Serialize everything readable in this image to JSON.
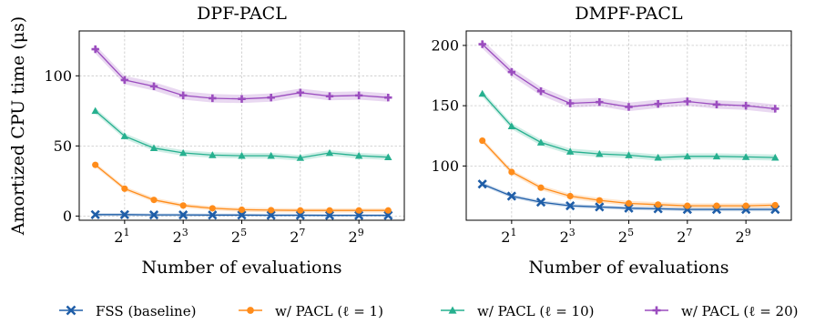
{
  "chart_data": [
    {
      "type": "line",
      "title": "DPF-PACL",
      "xlabel": "Number of evaluations",
      "ylabel": "Amortized CPU time (μs)",
      "x_scale": "log2",
      "x": [
        1,
        2,
        4,
        8,
        16,
        32,
        64,
        128,
        256,
        512,
        1024
      ],
      "xticks": [
        2,
        8,
        32,
        128,
        512
      ],
      "xtick_labels": [
        [
          "2",
          "1"
        ],
        [
          "2",
          "3"
        ],
        [
          "2",
          "5"
        ],
        [
          "2",
          "7"
        ],
        [
          "2",
          "9"
        ]
      ],
      "ylim": [
        -3,
        132
      ],
      "yticks": [
        0,
        50,
        100
      ],
      "ytick_labels": [
        "0",
        "50",
        "100"
      ],
      "grid": true,
      "series": [
        {
          "name": "FSS (baseline)",
          "values": [
            1,
            1,
            0.8,
            0.8,
            0.7,
            0.7,
            0.6,
            0.6,
            0.5,
            0.5,
            0.5
          ]
        },
        {
          "name": "w/ PACL (ℓ = 1)",
          "values": [
            36.5,
            19.5,
            11.5,
            7.5,
            5.5,
            4.5,
            4.2,
            4.0,
            4.0,
            4.0,
            4.0
          ]
        },
        {
          "name": "w/ PACL (ℓ = 10)",
          "values": [
            75,
            57,
            48.5,
            45,
            43.5,
            43,
            43,
            41.5,
            45,
            43,
            42
          ]
        },
        {
          "name": "w/ PACL (ℓ = 20)",
          "values": [
            119,
            97,
            92.5,
            86,
            84,
            83.5,
            84.5,
            88,
            85.5,
            86,
            84.5
          ]
        }
      ],
      "band": [
        1,
        1.5,
        2,
        3
      ]
    },
    {
      "type": "line",
      "title": "DMPF-PACL",
      "xlabel": "Number of evaluations",
      "ylabel": "",
      "x_scale": "log2",
      "x": [
        1,
        2,
        4,
        8,
        16,
        32,
        64,
        128,
        256,
        512,
        1024
      ],
      "xticks": [
        2,
        8,
        32,
        128,
        512
      ],
      "xtick_labels": [
        [
          "2",
          "1"
        ],
        [
          "2",
          "3"
        ],
        [
          "2",
          "5"
        ],
        [
          "2",
          "7"
        ],
        [
          "2",
          "9"
        ]
      ],
      "ylim": [
        55,
        212
      ],
      "yticks": [
        100,
        150,
        200
      ],
      "ytick_labels": [
        "100",
        "150",
        "200"
      ],
      "grid": true,
      "series": [
        {
          "name": "FSS (baseline)",
          "values": [
            85,
            75,
            70,
            67,
            66,
            65,
            64.5,
            64,
            64,
            64,
            64
          ]
        },
        {
          "name": "w/ PACL (ℓ = 1)",
          "values": [
            121,
            95,
            82,
            75,
            71.5,
            69,
            68,
            67,
            67,
            67,
            67.5
          ]
        },
        {
          "name": "w/ PACL (ℓ = 10)",
          "values": [
            160,
            133,
            119.5,
            112,
            110,
            109,
            107,
            108,
            108,
            107.5,
            107
          ]
        },
        {
          "name": "w/ PACL (ℓ = 20)",
          "values": [
            201,
            178,
            162,
            152,
            153,
            149,
            151.5,
            153.5,
            151,
            150,
            147.5
          ]
        }
      ],
      "band": [
        1.5,
        2,
        2.5,
        3.5
      ]
    }
  ],
  "legend": {
    "placement": "bottom",
    "items": [
      {
        "label": "FSS (baseline)",
        "color": "#1f5ea8",
        "marker": "x"
      },
      {
        "label": "w/ PACL (ℓ = 1)",
        "color": "#ff8c1a",
        "marker": "circle"
      },
      {
        "label": "w/ PACL (ℓ = 10)",
        "color": "#26b08f",
        "marker": "triangle"
      },
      {
        "label": "w/ PACL (ℓ = 20)",
        "color": "#9b4dbf",
        "marker": "plus"
      }
    ]
  }
}
